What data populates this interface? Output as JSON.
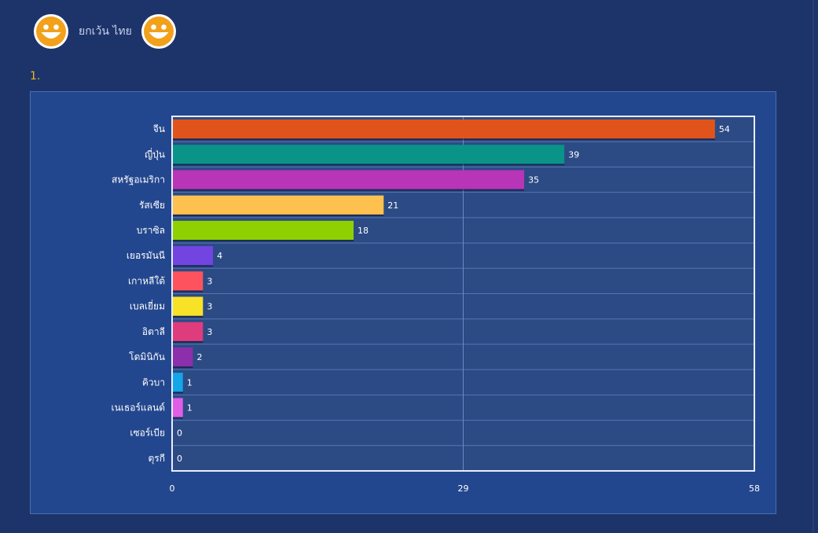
{
  "header": {
    "text": "ยกเว้น ไทย",
    "icon_left": "smiley-icon",
    "icon_right": "smiley-icon"
  },
  "question": {
    "number": "1."
  },
  "colors": {
    "page_bg": "#1d346b",
    "panel_bg": "#23478e",
    "plot_bg": "#2c4b85",
    "smiley": "#f2a11a"
  },
  "chart_data": {
    "type": "bar",
    "orientation": "horizontal",
    "categories": [
      "จีน",
      "ญี่ปุ่น",
      "สหรัฐอเมริกา",
      "รัสเซีย",
      "บราซิล",
      "เยอรมันนี",
      "เกาหลีใต้",
      "เบลเยี่ยม",
      "อิตาลี",
      "โดมินิกัน",
      "คิวบา",
      "เนเธอร์แลนด์",
      "เซอร์เบีย",
      "ตุรกี"
    ],
    "values": [
      54,
      39,
      35,
      21,
      18,
      4,
      3,
      3,
      3,
      2,
      1,
      1,
      0,
      0
    ],
    "colors": [
      "#e0541c",
      "#0a9488",
      "#b735b6",
      "#fec150",
      "#8fd100",
      "#7245e0",
      "#fe535f",
      "#f7e228",
      "#de3c7c",
      "#8b2fab",
      "#15a5e9",
      "#e05ee6",
      "#4b76c2",
      "#4b76c2"
    ],
    "xlim": [
      0,
      58
    ],
    "xticks": [
      "0",
      "29",
      "58"
    ],
    "grid": true,
    "data_labels": true,
    "legend": "none"
  }
}
